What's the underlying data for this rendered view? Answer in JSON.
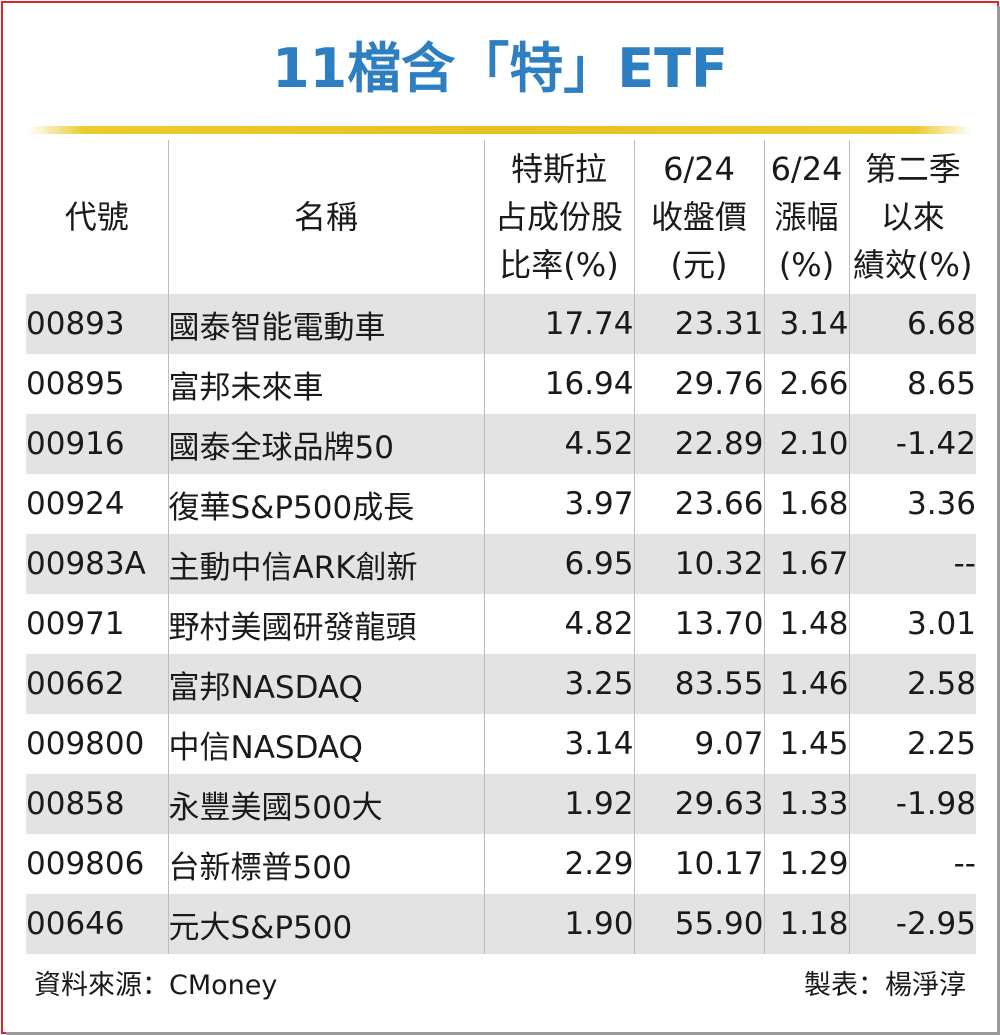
{
  "title": "11檔含「特」ETF",
  "headers": {
    "code": "代號",
    "name": "名稱",
    "tesla": [
      "特斯拉",
      "占成份股",
      "比率(%)"
    ],
    "close": [
      "6/24",
      "收盤價",
      "(元)"
    ],
    "change": [
      "6/24",
      "漲幅",
      "(%)"
    ],
    "q2": [
      "第二季",
      "以來",
      "績效(%)"
    ]
  },
  "rows": [
    {
      "code": "00893",
      "name": "國泰智能電動車",
      "tesla": "17.74",
      "close": "23.31",
      "change": "3.14",
      "q2": "6.68"
    },
    {
      "code": "00895",
      "name": "富邦未來車",
      "tesla": "16.94",
      "close": "29.76",
      "change": "2.66",
      "q2": "8.65"
    },
    {
      "code": "00916",
      "name": "國泰全球品牌50",
      "tesla": "4.52",
      "close": "22.89",
      "change": "2.10",
      "q2": "-1.42"
    },
    {
      "code": "00924",
      "name": "復華S&P500成長",
      "tesla": "3.97",
      "close": "23.66",
      "change": "1.68",
      "q2": "3.36"
    },
    {
      "code": "00983A",
      "name": "主動中信ARK創新",
      "tesla": "6.95",
      "close": "10.32",
      "change": "1.67",
      "q2": "--"
    },
    {
      "code": "00971",
      "name": "野村美國研發龍頭",
      "tesla": "4.82",
      "close": "13.70",
      "change": "1.48",
      "q2": "3.01"
    },
    {
      "code": "00662",
      "name": "富邦NASDAQ",
      "tesla": "3.25",
      "close": "83.55",
      "change": "1.46",
      "q2": "2.58"
    },
    {
      "code": "009800",
      "name": "中信NASDAQ",
      "tesla": "3.14",
      "close": "9.07",
      "change": "1.45",
      "q2": "2.25"
    },
    {
      "code": "00858",
      "name": "永豐美國500大",
      "tesla": "1.92",
      "close": "29.63",
      "change": "1.33",
      "q2": "-1.98"
    },
    {
      "code": "009806",
      "name": "台新標普500",
      "tesla": "2.29",
      "close": "10.17",
      "change": "1.29",
      "q2": "--"
    },
    {
      "code": "00646",
      "name": "元大S&P500",
      "tesla": "1.90",
      "close": "55.90",
      "change": "1.18",
      "q2": "-2.95"
    }
  ],
  "footer": {
    "source": "資料來源：CMoney",
    "maker": "製表：楊淨淳"
  },
  "colors": {
    "title": "#2d7fc1",
    "rule": "#e6c21f",
    "border": "#d9252c",
    "stripe": "#e3e3e3"
  }
}
